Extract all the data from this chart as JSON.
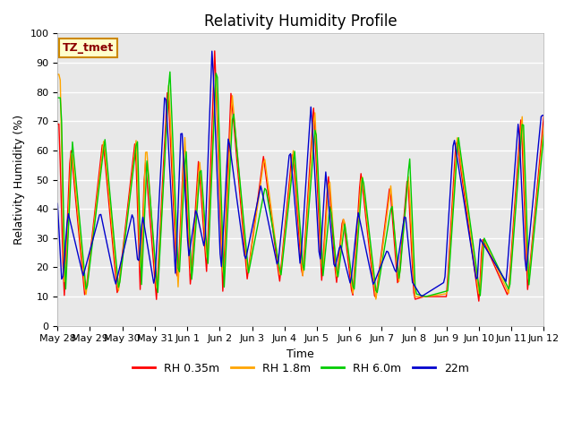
{
  "title": "Relativity Humidity Profile",
  "xlabel": "Time",
  "ylabel": "Relativity Humidity (%)",
  "annotation": "TZ_tmet",
  "ylim": [
    0,
    100
  ],
  "yticks": [
    0,
    10,
    20,
    30,
    40,
    50,
    60,
    70,
    80,
    90,
    100
  ],
  "xtick_labels": [
    "May 28",
    "May 29",
    "May 30",
    "May 31",
    "Jun 1",
    "Jun 2",
    "Jun 3",
    "Jun 4",
    "Jun 5",
    "Jun 6",
    "Jun 7",
    "Jun 8",
    "Jun 9",
    "Jun 10",
    "Jun 11",
    "Jun 12"
  ],
  "series_colors": [
    "#ff0000",
    "#ffa500",
    "#00cc00",
    "#0000cd"
  ],
  "series_labels": [
    "RH 0.35m",
    "RH 1.8m",
    "RH 6.0m",
    "22m"
  ],
  "background_color": "#e8e8e8",
  "plot_bg_color": "#e8e8e8",
  "title_fontsize": 12,
  "label_fontsize": 9,
  "tick_fontsize": 8,
  "annotation_fontsize": 9,
  "linewidth": 1.0
}
